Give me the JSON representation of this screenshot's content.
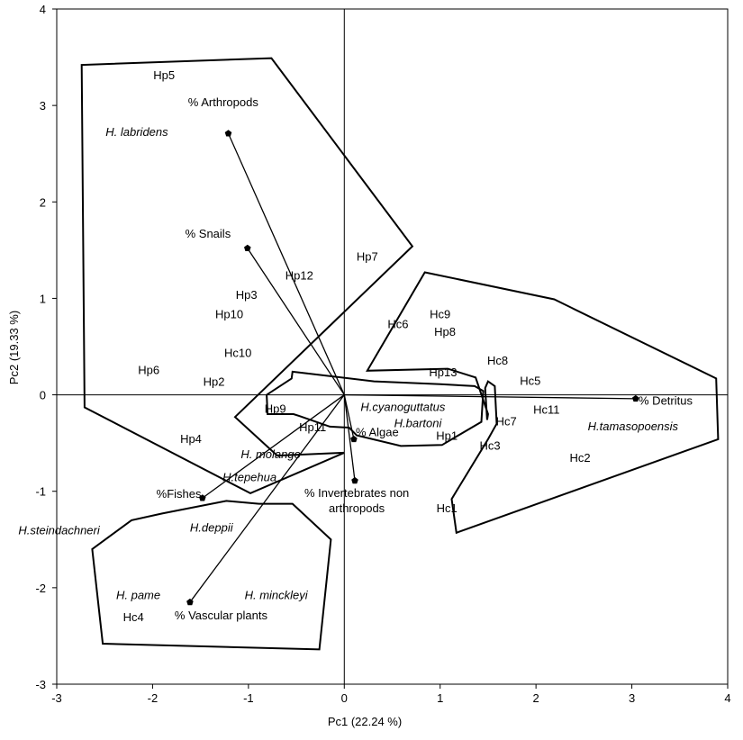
{
  "chart_data": {
    "type": "scatter",
    "subtype": "PCA biplot",
    "xlabel": "Pc1 (22.24 %)",
    "ylabel": "Pc2 (19.33 %)",
    "xlim": [
      -3,
      4
    ],
    "ylim": [
      -3,
      4
    ],
    "xticks": [
      -3,
      -2,
      -1,
      0,
      1,
      2,
      3,
      4
    ],
    "yticks": [
      -3,
      -2,
      -1,
      0,
      1,
      2,
      3,
      4
    ],
    "reference_lines": {
      "x": 0,
      "y": 0
    },
    "vectors": [
      {
        "label": "% Arthropods",
        "x": -1.21,
        "y": 2.71
      },
      {
        "label": "% Snails",
        "x": -1.01,
        "y": 1.52
      },
      {
        "label": "% Detritus",
        "x": 3.04,
        "y": -0.04
      },
      {
        "label": "% Algae",
        "x": 0.1,
        "y": -0.46
      },
      {
        "label": "% Invertebrates non arthropods",
        "x": 0.11,
        "y": -0.89
      },
      {
        "label": "%Fishes",
        "x": -1.48,
        "y": -1.07
      },
      {
        "label": "% Vascular plants",
        "x": -1.61,
        "y": -2.15
      }
    ],
    "vector_label_pos": [
      {
        "x": -1.63,
        "y": 2.99,
        "anchor": "start"
      },
      {
        "x": -1.66,
        "y": 1.63,
        "anchor": "start"
      },
      {
        "x": 3.07,
        "y": -0.1,
        "anchor": "start"
      },
      {
        "x": 0.12,
        "y": -0.43,
        "anchor": "start"
      },
      {
        "x": 0.13,
        "y": -1.06,
        "anchor": "middle",
        "line2": "arthropods"
      },
      {
        "x": -1.96,
        "y": -1.07,
        "anchor": "start"
      },
      {
        "x": -1.77,
        "y": -2.33,
        "anchor": "start"
      }
    ],
    "points": [
      {
        "label": "Hp5",
        "x": -1.88,
        "y": 3.32
      },
      {
        "label": "Hp7",
        "x": 0.24,
        "y": 1.44
      },
      {
        "label": "Hp12",
        "x": -0.47,
        "y": 1.24
      },
      {
        "label": "Hp3",
        "x": -1.02,
        "y": 1.04
      },
      {
        "label": "Hp10",
        "x": -1.2,
        "y": 0.84
      },
      {
        "label": "Hc10",
        "x": -1.11,
        "y": 0.44
      },
      {
        "label": "Hp6",
        "x": -2.04,
        "y": 0.26
      },
      {
        "label": "Hp2",
        "x": -1.36,
        "y": 0.14
      },
      {
        "label": "Hp4",
        "x": -1.6,
        "y": -0.45
      },
      {
        "label": "Hp9",
        "x": -0.72,
        "y": -0.14
      },
      {
        "label": "Hp11",
        "x": -0.33,
        "y": -0.33
      },
      {
        "label": "Hc6",
        "x": 0.56,
        "y": 0.74
      },
      {
        "label": "Hc9",
        "x": 1.0,
        "y": 0.84
      },
      {
        "label": "Hp8",
        "x": 1.05,
        "y": 0.66
      },
      {
        "label": "Hc8",
        "x": 1.6,
        "y": 0.36
      },
      {
        "label": "Hp13",
        "x": 1.03,
        "y": 0.24
      },
      {
        "label": "Hc5",
        "x": 1.94,
        "y": 0.15
      },
      {
        "label": "Hc11",
        "x": 2.11,
        "y": -0.15
      },
      {
        "label": "Hc7",
        "x": 1.69,
        "y": -0.27
      },
      {
        "label": "Hp1",
        "x": 1.07,
        "y": -0.42
      },
      {
        "label": "Hc3",
        "x": 1.52,
        "y": -0.52
      },
      {
        "label": "Hc2",
        "x": 2.46,
        "y": -0.65
      },
      {
        "label": "Hc1",
        "x": 1.07,
        "y": -1.17
      },
      {
        "label": "Hc4",
        "x": -2.2,
        "y": -2.3
      }
    ],
    "species": [
      {
        "label": "H. labridens",
        "x": -2.49,
        "y": 2.73,
        "anchor": "start"
      },
      {
        "label": "H.cyanoguttatus",
        "x": 0.17,
        "y": -0.12,
        "anchor": "start"
      },
      {
        "label": "H.bartoni",
        "x": 0.52,
        "y": -0.29,
        "anchor": "start"
      },
      {
        "label": "H.tamasopoensis",
        "x": 2.54,
        "y": -0.32,
        "anchor": "start"
      },
      {
        "label": "H. molango",
        "x": -1.08,
        "y": -0.61,
        "anchor": "start"
      },
      {
        "label": "H.tepehua",
        "x": -1.27,
        "y": -0.85,
        "anchor": "start"
      },
      {
        "label": "H.steindachneri",
        "x": -3.4,
        "y": -1.4,
        "anchor": "start"
      },
      {
        "label": "H.deppii",
        "x": -1.61,
        "y": -1.37,
        "anchor": "start"
      },
      {
        "label": "H. pame",
        "x": -2.38,
        "y": -2.07,
        "anchor": "start"
      },
      {
        "label": "H. minckleyi",
        "x": -1.04,
        "y": -2.07,
        "anchor": "start"
      }
    ],
    "hulls": [
      [
        [
          -2.74,
          3.42
        ],
        [
          -0.76,
          3.49
        ],
        [
          0.71,
          1.54
        ],
        [
          -1.14,
          -0.23
        ],
        [
          -0.7,
          -0.63
        ],
        [
          0.0,
          -0.6
        ],
        [
          -0.98,
          -1.02
        ],
        [
          -2.71,
          -0.13
        ]
      ],
      [
        [
          0.84,
          1.27
        ],
        [
          2.19,
          0.99
        ],
        [
          3.88,
          0.17
        ],
        [
          3.9,
          -0.46
        ],
        [
          1.17,
          -1.43
        ],
        [
          1.12,
          -1.08
        ],
        [
          1.5,
          -0.46
        ],
        [
          1.59,
          -0.3
        ],
        [
          1.57,
          0.09
        ],
        [
          1.5,
          0.14
        ],
        [
          1.47,
          0.07
        ],
        [
          1.49,
          -0.26
        ],
        [
          1.5,
          -0.2
        ],
        [
          1.37,
          0.18
        ],
        [
          1.08,
          0.27
        ],
        [
          0.24,
          0.25
        ]
      ],
      [
        [
          -0.54,
          0.24
        ],
        [
          0.31,
          0.14
        ],
        [
          1.0,
          0.11
        ],
        [
          1.36,
          0.09
        ],
        [
          1.45,
          0.04
        ],
        [
          1.43,
          -0.28
        ],
        [
          1.02,
          -0.52
        ],
        [
          0.59,
          -0.53
        ],
        [
          0.13,
          -0.42
        ],
        [
          0.05,
          -0.34
        ],
        [
          -0.15,
          -0.33
        ],
        [
          -0.47,
          -0.22
        ],
        [
          -0.53,
          -0.2
        ],
        [
          -0.8,
          -0.2
        ],
        [
          -0.81,
          0.0
        ],
        [
          -0.55,
          0.17
        ]
      ],
      [
        [
          -1.9,
          -1.23
        ],
        [
          -1.23,
          -1.1
        ],
        [
          -0.89,
          -1.13
        ],
        [
          -0.54,
          -1.13
        ],
        [
          -0.14,
          -1.5
        ],
        [
          -0.26,
          -2.64
        ],
        [
          -2.52,
          -2.58
        ],
        [
          -2.63,
          -1.6
        ],
        [
          -2.22,
          -1.3
        ]
      ]
    ]
  }
}
